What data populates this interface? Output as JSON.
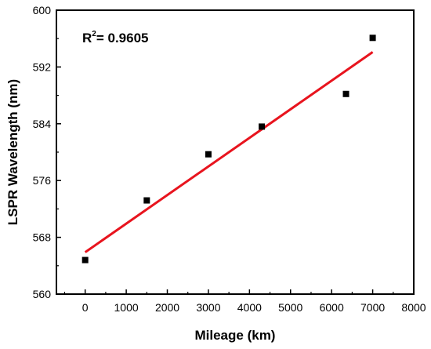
{
  "chart_data": {
    "type": "scatter",
    "xlabel": "Mileage (km)",
    "ylabel": "LSPR Wavelength (nm)",
    "xlim": [
      -700,
      8000
    ],
    "ylim": [
      560,
      600
    ],
    "xticks": [
      0,
      1000,
      2000,
      3000,
      4000,
      5000,
      6000,
      7000,
      8000
    ],
    "yticks": [
      560,
      568,
      576,
      584,
      592,
      600
    ],
    "series": [
      {
        "x": [
          0,
          1500,
          3000,
          4300,
          6350,
          7000
        ],
        "y": [
          564.8,
          573.2,
          579.7,
          583.6,
          588.2,
          596.1
        ],
        "marker": "square",
        "color": "#000000"
      }
    ],
    "fit_line": {
      "x": [
        0,
        7000
      ],
      "y": [
        565.9,
        594.1
      ],
      "color": "#e8141e"
    },
    "annotation": {
      "prefix": "R",
      "superscript": "2",
      "suffix": "= 0.9605"
    },
    "grid": false,
    "legend": "none"
  }
}
